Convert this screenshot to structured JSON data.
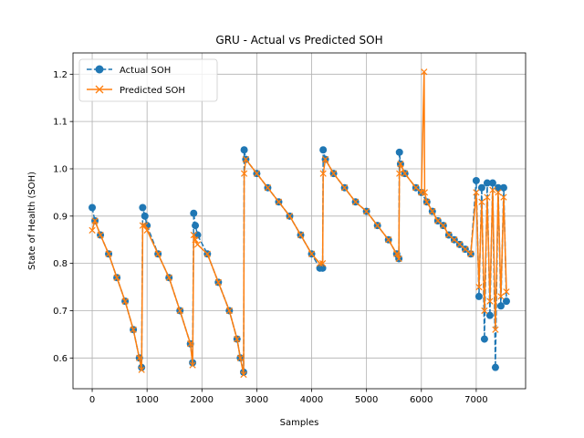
{
  "chart_data": {
    "type": "line",
    "title": "GRU - Actual vs Predicted SOH",
    "xlabel": "Samples",
    "ylabel": "State of Health (SOH)",
    "xlim": [
      -350,
      7900
    ],
    "ylim": [
      0.535,
      1.245
    ],
    "xticks": [
      0,
      1000,
      2000,
      3000,
      4000,
      5000,
      6000,
      7000
    ],
    "yticks": [
      0.6,
      0.7,
      0.8,
      0.9,
      1.0,
      1.1,
      1.2
    ],
    "ytick_labels": [
      "0.6",
      "0.7",
      "0.8",
      "0.9",
      "1.0",
      "1.1",
      "1.2"
    ],
    "grid": true,
    "legend_position": "top-left",
    "colors": {
      "actual": "#1f77b4",
      "predicted": "#ff7f0e"
    },
    "series": [
      {
        "name": "Actual SOH",
        "style": "dashed line with circle markers",
        "x": [
          0,
          50,
          150,
          300,
          450,
          600,
          750,
          860,
          900,
          920,
          960,
          1000,
          1200,
          1400,
          1600,
          1790,
          1830,
          1850,
          1880,
          1920,
          2100,
          2300,
          2500,
          2640,
          2700,
          2760,
          2770,
          2800,
          3000,
          3200,
          3400,
          3600,
          3800,
          4000,
          4150,
          4200,
          4210,
          4250,
          4400,
          4600,
          4800,
          5000,
          5200,
          5400,
          5550,
          5590,
          5600,
          5620,
          5700,
          5900,
          6000,
          6100,
          6200,
          6300,
          6400,
          6500,
          6600,
          6700,
          6800,
          6900,
          7000,
          7050,
          7100,
          7150,
          7200,
          7250,
          7300,
          7350,
          7400,
          7450,
          7500,
          7550
        ],
        "y": [
          0.918,
          0.89,
          0.86,
          0.82,
          0.77,
          0.72,
          0.66,
          0.6,
          0.58,
          0.918,
          0.9,
          0.88,
          0.82,
          0.77,
          0.7,
          0.63,
          0.59,
          0.906,
          0.88,
          0.86,
          0.82,
          0.76,
          0.7,
          0.64,
          0.6,
          0.57,
          1.04,
          1.02,
          0.99,
          0.96,
          0.93,
          0.9,
          0.86,
          0.82,
          0.79,
          0.79,
          1.04,
          1.02,
          0.99,
          0.96,
          0.93,
          0.91,
          0.88,
          0.85,
          0.82,
          0.81,
          1.035,
          1.01,
          0.99,
          0.96,
          0.95,
          0.93,
          0.91,
          0.89,
          0.88,
          0.86,
          0.85,
          0.84,
          0.83,
          0.82,
          0.975,
          0.73,
          0.96,
          0.64,
          0.97,
          0.69,
          0.97,
          0.58,
          0.96,
          0.71,
          0.96,
          0.72
        ]
      },
      {
        "name": "Predicted SOH",
        "style": "solid line with x markers",
        "x": [
          0,
          50,
          150,
          300,
          450,
          600,
          750,
          860,
          900,
          920,
          960,
          1000,
          1200,
          1400,
          1600,
          1790,
          1830,
          1850,
          1880,
          1920,
          2100,
          2300,
          2500,
          2640,
          2700,
          2760,
          2770,
          2800,
          3000,
          3200,
          3400,
          3600,
          3800,
          4000,
          4150,
          4200,
          4210,
          4250,
          4400,
          4600,
          4800,
          5000,
          5200,
          5400,
          5550,
          5590,
          5600,
          5620,
          5700,
          5900,
          6000,
          6050,
          6060,
          6100,
          6200,
          6300,
          6400,
          6500,
          6600,
          6700,
          6800,
          6900,
          7000,
          7050,
          7100,
          7150,
          7200,
          7250,
          7300,
          7350,
          7400,
          7450,
          7500,
          7550
        ],
        "y": [
          0.87,
          0.89,
          0.86,
          0.82,
          0.77,
          0.72,
          0.66,
          0.6,
          0.575,
          0.88,
          0.88,
          0.87,
          0.82,
          0.77,
          0.7,
          0.63,
          0.585,
          0.86,
          0.85,
          0.84,
          0.82,
          0.76,
          0.7,
          0.64,
          0.6,
          0.565,
          0.99,
          1.02,
          0.99,
          0.96,
          0.93,
          0.9,
          0.86,
          0.82,
          0.8,
          0.8,
          0.99,
          1.02,
          0.99,
          0.96,
          0.93,
          0.91,
          0.88,
          0.85,
          0.82,
          0.81,
          0.99,
          1.01,
          0.99,
          0.96,
          0.95,
          1.205,
          0.95,
          0.93,
          0.91,
          0.89,
          0.88,
          0.86,
          0.85,
          0.84,
          0.83,
          0.82,
          0.95,
          0.75,
          0.93,
          0.7,
          0.94,
          0.72,
          0.955,
          0.66,
          0.95,
          0.73,
          0.94,
          0.74
        ]
      }
    ]
  }
}
